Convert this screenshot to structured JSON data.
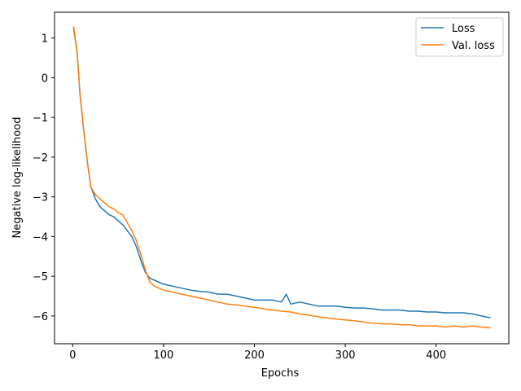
{
  "chart_data": {
    "type": "line",
    "title": "",
    "xlabel": "Epochs",
    "ylabel": "Negative log-likelihood",
    "xlim": [
      -20,
      480
    ],
    "ylim": [
      -6.7,
      1.65
    ],
    "xticks": [
      0,
      100,
      200,
      300,
      400
    ],
    "yticks": [
      1,
      0,
      -1,
      -2,
      -3,
      -4,
      -5,
      -6
    ],
    "ytick_labels": [
      "1",
      "0",
      "−1",
      "−2",
      "−3",
      "−4",
      "−5",
      "−6"
    ],
    "grid": false,
    "legend": {
      "placement": "top-right"
    },
    "series": [
      {
        "name": "Loss",
        "color": "#1f77b4",
        "x": [
          1,
          5,
          8,
          12,
          16,
          20,
          25,
          30,
          35,
          40,
          45,
          50,
          55,
          60,
          65,
          70,
          75,
          80,
          85,
          90,
          100,
          110,
          120,
          130,
          140,
          150,
          160,
          170,
          180,
          190,
          200,
          210,
          220,
          230,
          235,
          240,
          250,
          260,
          270,
          280,
          290,
          300,
          310,
          320,
          330,
          340,
          350,
          360,
          370,
          380,
          390,
          400,
          410,
          420,
          430,
          440,
          450,
          460
        ],
        "y": [
          1.25,
          0.6,
          -0.4,
          -1.3,
          -2.1,
          -2.75,
          -3.05,
          -3.25,
          -3.35,
          -3.45,
          -3.5,
          -3.6,
          -3.7,
          -3.85,
          -4.0,
          -4.25,
          -4.6,
          -4.9,
          -5.05,
          -5.1,
          -5.2,
          -5.25,
          -5.3,
          -5.35,
          -5.38,
          -5.4,
          -5.45,
          -5.45,
          -5.5,
          -5.55,
          -5.6,
          -5.6,
          -5.6,
          -5.65,
          -5.45,
          -5.7,
          -5.65,
          -5.7,
          -5.75,
          -5.75,
          -5.75,
          -5.78,
          -5.8,
          -5.8,
          -5.82,
          -5.85,
          -5.85,
          -5.85,
          -5.88,
          -5.88,
          -5.9,
          -5.9,
          -5.92,
          -5.92,
          -5.92,
          -5.95,
          -6.0,
          -6.05
        ]
      },
      {
        "name": "Val. loss",
        "color": "#ff7f0e",
        "x": [
          1,
          5,
          8,
          12,
          16,
          20,
          25,
          30,
          35,
          40,
          45,
          50,
          55,
          60,
          65,
          70,
          75,
          80,
          85,
          90,
          100,
          110,
          120,
          130,
          140,
          150,
          160,
          170,
          180,
          190,
          200,
          210,
          220,
          230,
          240,
          250,
          260,
          270,
          280,
          290,
          300,
          310,
          320,
          330,
          340,
          350,
          360,
          370,
          380,
          390,
          400,
          410,
          420,
          430,
          440,
          450,
          460
        ],
        "y": [
          1.3,
          0.6,
          -0.4,
          -1.3,
          -2.1,
          -2.75,
          -2.95,
          -3.05,
          -3.15,
          -3.25,
          -3.3,
          -3.4,
          -3.45,
          -3.65,
          -3.85,
          -4.1,
          -4.45,
          -4.85,
          -5.15,
          -5.25,
          -5.35,
          -5.4,
          -5.45,
          -5.5,
          -5.55,
          -5.6,
          -5.65,
          -5.7,
          -5.72,
          -5.75,
          -5.78,
          -5.82,
          -5.85,
          -5.88,
          -5.9,
          -5.95,
          -5.98,
          -6.02,
          -6.05,
          -6.08,
          -6.1,
          -6.12,
          -6.15,
          -6.18,
          -6.2,
          -6.2,
          -6.22,
          -6.22,
          -6.25,
          -6.25,
          -6.25,
          -6.28,
          -6.25,
          -6.28,
          -6.25,
          -6.28,
          -6.3
        ]
      }
    ]
  }
}
